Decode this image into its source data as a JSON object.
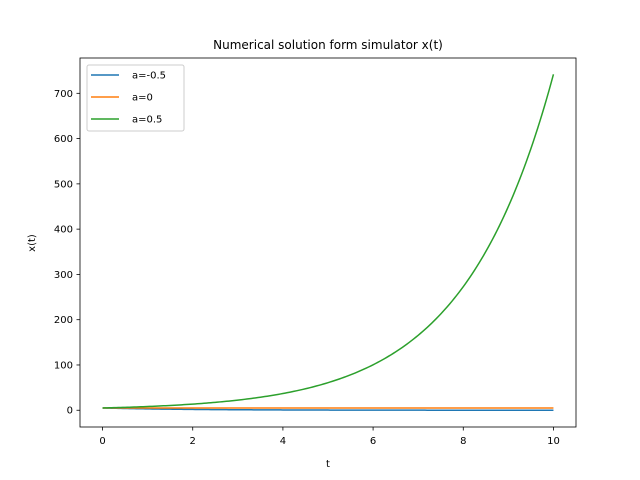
{
  "chart_data": {
    "type": "line",
    "title": "Numerical solution form simulator x(t)",
    "xlabel": "t",
    "ylabel": "x(t)",
    "xlim": [
      -0.5,
      10.5
    ],
    "ylim": [
      -37,
      778
    ],
    "xticks": [
      0,
      2,
      4,
      6,
      8,
      10
    ],
    "yticks": [
      0,
      100,
      200,
      300,
      400,
      500,
      600,
      700
    ],
    "grid": false,
    "legend_position": "top-left",
    "x0": 5,
    "t_range": [
      0,
      10
    ],
    "series": [
      {
        "name": "a=-0.5",
        "a": -0.5,
        "color": "#1f77b4"
      },
      {
        "name": "a=0",
        "a": 0,
        "color": "#ff7f0e"
      },
      {
        "name": "a=0.5",
        "a": 0.5,
        "color": "#2ca02c"
      }
    ]
  }
}
